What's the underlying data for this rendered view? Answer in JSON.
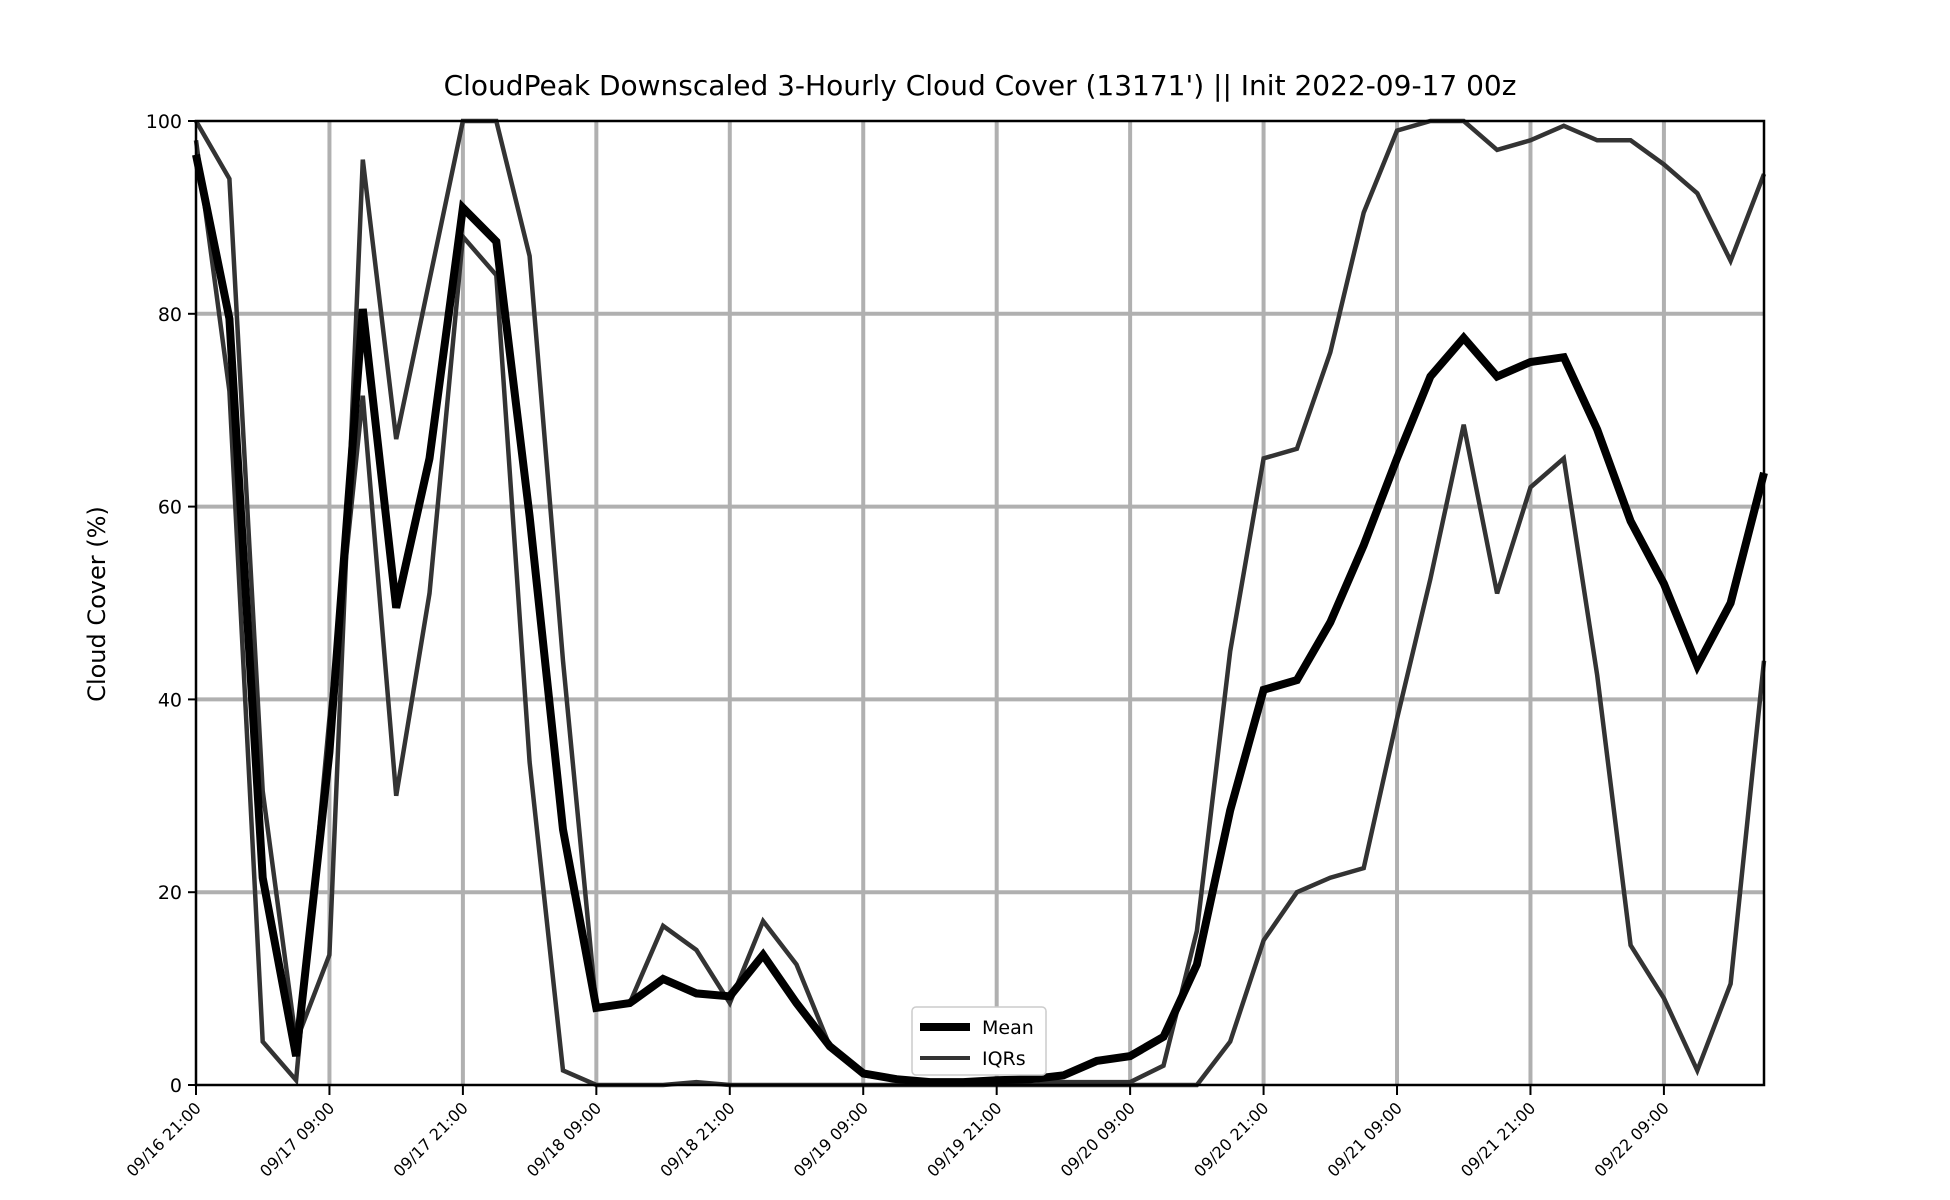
{
  "chart_data": {
    "type": "line",
    "title": "CloudPeak Downscaled 3-Hourly Cloud Cover (13171') || Init 2022-09-17 00z",
    "xlabel": "",
    "ylabel": "Cloud Cover (%)",
    "ylim": [
      0,
      100
    ],
    "yticks": [
      0,
      20,
      40,
      60,
      80,
      100
    ],
    "x_tick_labels": [
      "09/16 21:00",
      "09/17 09:00",
      "09/17 21:00",
      "09/18 09:00",
      "09/18 21:00",
      "09/19 09:00",
      "09/19 21:00",
      "09/20 09:00",
      "09/20 21:00",
      "09/21 09:00",
      "09/21 21:00",
      "09/22 09:00"
    ],
    "grid": true,
    "legend_position": "bottom-center",
    "x": [
      "09/16 21:00",
      "09/17 00:00",
      "09/17 03:00",
      "09/17 06:00",
      "09/17 09:00",
      "09/17 12:00",
      "09/17 15:00",
      "09/17 18:00",
      "09/17 21:00",
      "09/18 00:00",
      "09/18 03:00",
      "09/18 06:00",
      "09/18 09:00",
      "09/18 12:00",
      "09/18 15:00",
      "09/18 18:00",
      "09/18 21:00",
      "09/19 00:00",
      "09/19 03:00",
      "09/19 06:00",
      "09/19 09:00",
      "09/19 12:00",
      "09/19 15:00",
      "09/19 18:00",
      "09/19 21:00",
      "09/20 00:00",
      "09/20 03:00",
      "09/20 06:00",
      "09/20 09:00",
      "09/20 12:00",
      "09/20 15:00",
      "09/20 18:00",
      "09/20 21:00",
      "09/21 00:00",
      "09/21 03:00",
      "09/21 06:00",
      "09/21 09:00",
      "09/21 12:00",
      "09/21 15:00",
      "09/21 18:00",
      "09/21 21:00",
      "09/22 00:00",
      "09/22 03:00",
      "09/22 06:00",
      "09/22 09:00",
      "09/22 12:00",
      "09/22 15:00",
      "09/22 18:00"
    ],
    "series": [
      {
        "name": "Mean",
        "color": "#000000",
        "values": [
          96.5,
          79.5,
          21.5,
          3.0,
          34.5,
          80.5,
          49.5,
          65.0,
          91.0,
          87.5,
          59.0,
          26.5,
          8.0,
          8.5,
          11.0,
          9.5,
          9.2,
          13.5,
          8.5,
          4.0,
          1.2,
          0.6,
          0.3,
          0.3,
          0.5,
          0.6,
          1.0,
          2.5,
          3.0,
          5.0,
          12.5,
          28.5,
          41.0,
          42.0,
          48.0,
          56.0,
          65.0,
          73.5,
          77.5,
          73.5,
          75.0,
          75.5,
          68.0,
          58.5,
          52.0,
          43.5,
          50.0,
          63.5
        ]
      },
      {
        "name": "IQRs",
        "color": "#333333",
        "values": [
          100,
          94.0,
          30.5,
          4.5,
          13.5,
          96.0,
          67.0,
          83.5,
          100,
          100,
          86.0,
          44.0,
          8.0,
          8.5,
          16.5,
          14.0,
          8.5,
          17.0,
          12.5,
          4.0,
          1.0,
          0.6,
          0.3,
          0.3,
          0.3,
          0.5,
          0.3,
          0.3,
          0.3,
          2.0,
          16.0,
          45.0,
          65.0,
          66.0,
          76.0,
          90.5,
          99.0,
          100,
          100,
          97.0,
          98.0,
          99.5,
          98.0,
          98.0,
          95.5,
          92.5,
          85.5,
          94.5
        ]
      },
      {
        "name": "",
        "color": "#333333",
        "values": [
          98.0,
          72.0,
          4.5,
          0.5,
          38.0,
          71.5,
          30.0,
          51.0,
          88.0,
          84.0,
          33.5,
          1.5,
          0.0,
          0.0,
          0.0,
          0.3,
          0.0,
          0.0,
          0.0,
          0.0,
          0.0,
          0.0,
          0.0,
          0.0,
          0.0,
          0.0,
          0.0,
          0.0,
          0.0,
          0.0,
          0.0,
          4.5,
          15.0,
          20.0,
          21.5,
          22.5,
          38.0,
          52.5,
          68.5,
          51.0,
          62.0,
          65.0,
          42.5,
          14.5,
          9.0,
          1.5,
          10.5,
          44.0
        ]
      }
    ],
    "legend": [
      {
        "label": "Mean",
        "color": "#000000"
      },
      {
        "label": "IQRs",
        "color": "#333333"
      }
    ]
  }
}
